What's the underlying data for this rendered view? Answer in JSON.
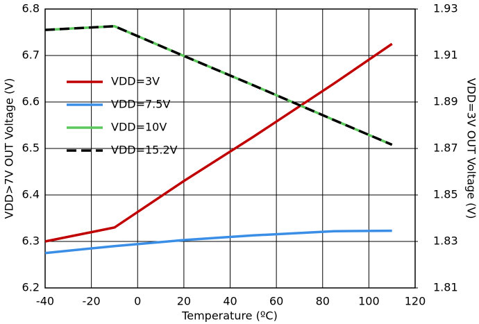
{
  "chart_data": {
    "type": "line",
    "x_label": "Temperature (ºC)",
    "y_label": "VDD>7V OUT Voltage (V)",
    "y2_label": "VDD=3V OUT Voltage (V)",
    "x": [
      -40,
      -10,
      20,
      50,
      85,
      110
    ],
    "series": [
      {
        "name": "VDD=3V",
        "color": "#c00000",
        "axis": "y2",
        "values": [
          1.83,
          1.836,
          1.856,
          1.875,
          1.898,
          1.915
        ]
      },
      {
        "name": "VDD=7.5V",
        "color": "#3a8ee6",
        "values": [
          6.275,
          6.29,
          6.303,
          6.313,
          6.322,
          6.323
        ]
      },
      {
        "name": "VDD=10V",
        "color": "#5ac85a",
        "values": [
          6.755,
          6.763,
          6.699,
          6.636,
          6.561,
          6.508
        ]
      },
      {
        "name": "VDD=15.2V",
        "color": "#000000",
        "dashed": true,
        "values": [
          6.755,
          6.763,
          6.699,
          6.636,
          6.561,
          6.508
        ]
      }
    ],
    "xlim": [
      -40,
      120
    ],
    "xticks": [
      -40,
      -20,
      0,
      20,
      40,
      60,
      80,
      100,
      120
    ],
    "ylim": [
      6.2,
      6.8
    ],
    "yticks": [
      6.2,
      6.3,
      6.4,
      6.5,
      6.6,
      6.7,
      6.8
    ],
    "y2lim": [
      1.81,
      1.93
    ],
    "y2ticks": [
      1.81,
      1.83,
      1.85,
      1.87,
      1.89,
      1.91,
      1.93
    ],
    "grid": true,
    "legend": "upper-left"
  }
}
